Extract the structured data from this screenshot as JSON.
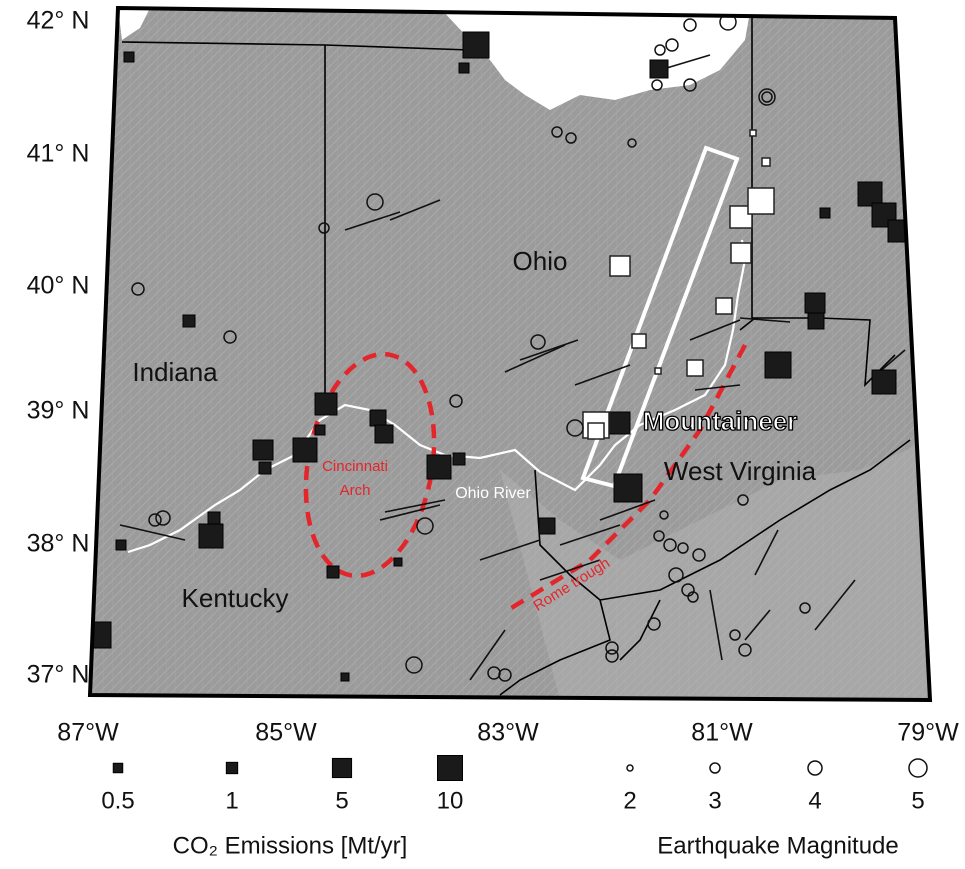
{
  "lat_labels": [
    "42° N",
    "41° N",
    "40° N",
    "39° N",
    "38° N",
    "37° N"
  ],
  "lon_labels": [
    "87°W",
    "85°W",
    "83°W",
    "81°W",
    "79°W"
  ],
  "places": {
    "ohio": "Ohio",
    "indiana": "Indiana",
    "kentucky": "Kentucky",
    "west_virginia": "West Virginia",
    "mountaineer": "Mountaineer"
  },
  "features": {
    "cincinnati_arch": [
      "Cincinnati",
      "Arch"
    ],
    "ohio_river": "Ohio River",
    "rome_trough": "Rome trough"
  },
  "legend": {
    "co2": {
      "title": "CO₂ Emissions [Mt/yr]",
      "values": [
        0.5,
        1,
        5,
        10
      ]
    },
    "earthquake": {
      "title": "Earthquake Magnitude",
      "values": [
        2,
        3,
        4,
        5
      ]
    }
  }
}
